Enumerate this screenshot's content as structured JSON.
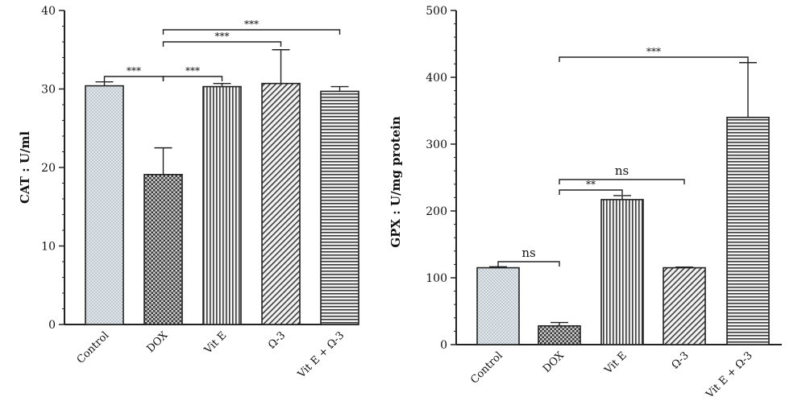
{
  "chart_data": [
    {
      "type": "bar",
      "ylabel": "CAT : U/ml",
      "ylim": [
        0,
        40
      ],
      "yticks": [
        0,
        10,
        20,
        30,
        40
      ],
      "categories": [
        "Control",
        "DOX",
        "Vit E",
        "Ω-3",
        "Vit E + Ω-3"
      ],
      "values": [
        30.4,
        19.1,
        30.3,
        30.7,
        29.7
      ],
      "errors": [
        0.5,
        3.4,
        0.4,
        4.3,
        0.6
      ],
      "patterns": [
        "dots",
        "checker",
        "vertical",
        "diagonal",
        "horizontal"
      ],
      "significance": [
        {
          "from": 0,
          "to": 1,
          "label": "***"
        },
        {
          "from": 1,
          "to": 2,
          "label": "***"
        },
        {
          "from": 1,
          "to": 3,
          "label": "***"
        },
        {
          "from": 1,
          "to": 4,
          "label": "***"
        }
      ]
    },
    {
      "type": "bar",
      "ylabel": "GPX : U/mg protein",
      "ylim": [
        0,
        500
      ],
      "yticks": [
        0,
        100,
        200,
        300,
        400,
        500
      ],
      "categories": [
        "Control",
        "DOX",
        "Vit E",
        "Ω-3",
        "Vit E + Ω-3"
      ],
      "values": [
        115,
        28,
        217,
        115,
        340
      ],
      "errors": [
        1.5,
        5,
        6,
        1,
        82
      ],
      "patterns": [
        "dots",
        "checker",
        "vertical",
        "diagonal",
        "horizontal"
      ],
      "significance": [
        {
          "from": 0,
          "to": 1,
          "label": "ns"
        },
        {
          "from": 1,
          "to": 2,
          "label": "**"
        },
        {
          "from": 1,
          "to": 3,
          "label": "ns"
        },
        {
          "from": 1,
          "to": 4,
          "label": "***"
        }
      ]
    }
  ],
  "colors": {
    "bar_stroke": "#222222",
    "bar_fill_light": "#e3e8ec",
    "bar_pattern": "#4a4a4a",
    "axis": "#222222"
  }
}
